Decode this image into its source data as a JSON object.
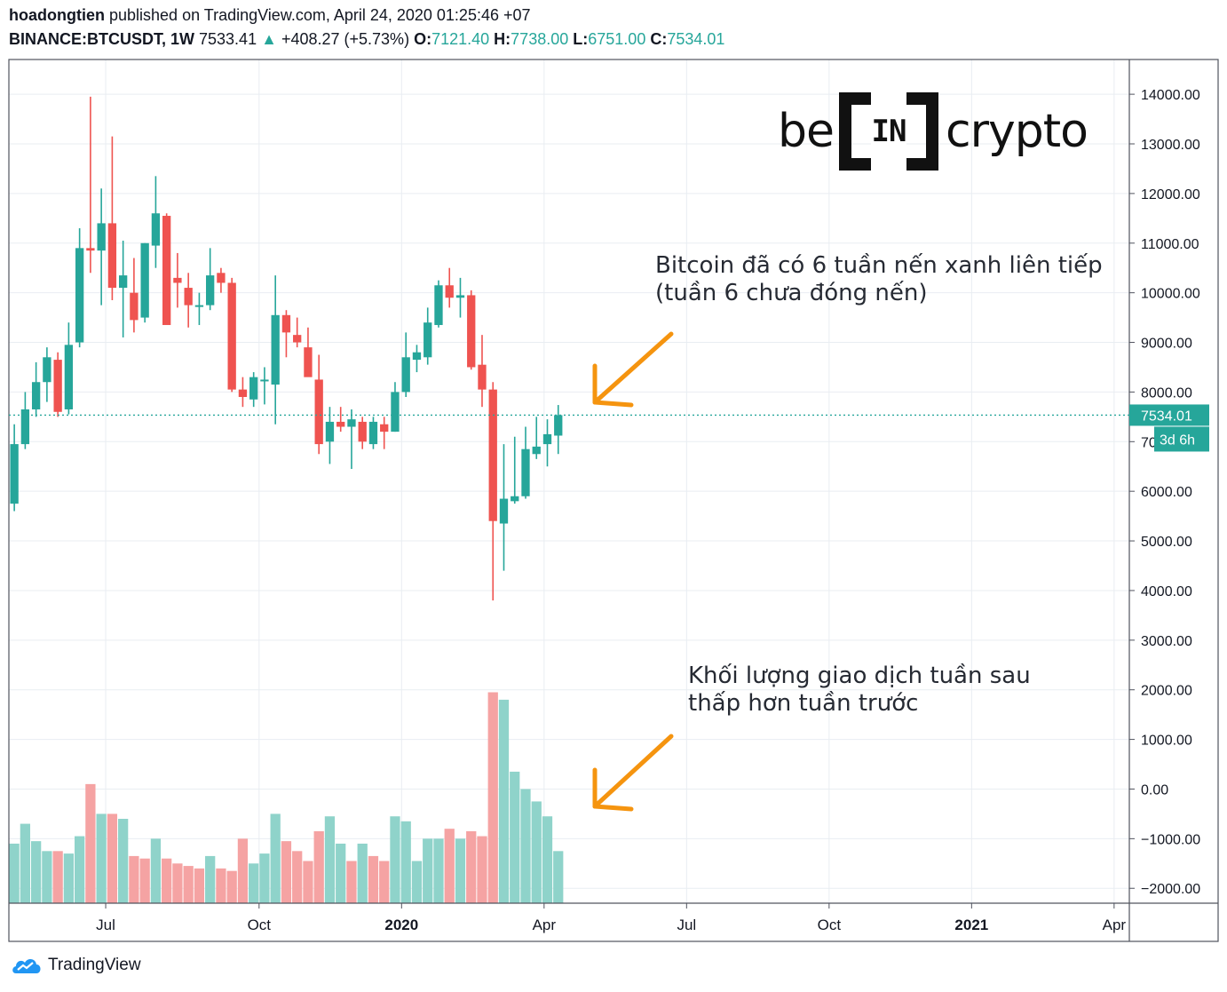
{
  "header": {
    "author": "hoadongtien",
    "published": "published on TradingView.com, April 24, 2020 01:25:46 +07",
    "symbol": "BINANCE:BTCUSDT, 1W",
    "last": "7533.41",
    "change_arrow": "▲",
    "change": "+408.27 (+5.73%)",
    "o_label": "O:",
    "o": "7121.40",
    "h_label": "H:",
    "h": "7738.00",
    "l_label": "L:",
    "l": "6751.00",
    "c_label": "C:",
    "c": "7534.01"
  },
  "logo": {
    "left": "be",
    "middle": "IN",
    "right": "crypto"
  },
  "annotations": {
    "candles_line1": "Bitcoin đã có 6 tuần nến xanh liên tiếp",
    "candles_line2": "(tuần 6 chưa đóng nến)",
    "volume_line1": "Khối lượng giao dịch tuần sau",
    "volume_line2": "thấp hơn tuần trước"
  },
  "price_label": {
    "value": "7534.01",
    "countdown": "3d 6h"
  },
  "footer": {
    "brand": "TradingView"
  },
  "colors": {
    "up": "#26a69a",
    "down": "#ef5350",
    "vol_up": "#8fd3ca",
    "vol_down": "#f5a3a3",
    "arrow": "#f5940f",
    "grid": "#e9edf2"
  },
  "chart_data": {
    "type": "candlestick",
    "ylim": [
      -2300,
      14700
    ],
    "y_ticks": [
      "14000.00",
      "13000.00",
      "12000.00",
      "11000.00",
      "10000.00",
      "9000.00",
      "8000.00",
      "7000.00",
      "6000.00",
      "5000.00",
      "4000.00",
      "3000.00",
      "2000.00",
      "1000.00",
      "0.00",
      "−1000.00",
      "−2000.00"
    ],
    "y_tick_values": [
      14000,
      13000,
      12000,
      11000,
      10000,
      9000,
      8000,
      7000,
      6000,
      5000,
      4000,
      3000,
      2000,
      1000,
      0,
      -1000,
      -2000
    ],
    "x_ticks": [
      {
        "label": "Jul",
        "index": 8.4,
        "bold": false
      },
      {
        "label": "Oct",
        "index": 22.5,
        "bold": false
      },
      {
        "label": "2020",
        "index": 35.6,
        "bold": true
      },
      {
        "label": "Apr",
        "index": 48.7,
        "bold": false
      },
      {
        "label": "Jul",
        "index": 61.8,
        "bold": false
      },
      {
        "label": "Oct",
        "index": 74.9,
        "bold": false
      },
      {
        "label": "2021",
        "index": 88.0,
        "bold": true
      },
      {
        "label": "Apr",
        "index": 101.1,
        "bold": false
      }
    ],
    "x_range": [
      -0.5,
      102.5
    ],
    "last_price": 7534.01,
    "candles": [
      {
        "o": 5750,
        "h": 7350,
        "l": 5600,
        "c": 6950
      },
      {
        "o": 6950,
        "h": 8000,
        "l": 6850,
        "c": 7650
      },
      {
        "o": 7650,
        "h": 8600,
        "l": 7500,
        "c": 8200
      },
      {
        "o": 8200,
        "h": 8900,
        "l": 7800,
        "c": 8700
      },
      {
        "o": 8650,
        "h": 8800,
        "l": 7500,
        "c": 7600
      },
      {
        "o": 7650,
        "h": 9400,
        "l": 7550,
        "c": 8950
      },
      {
        "o": 9000,
        "h": 11300,
        "l": 8900,
        "c": 10900
      },
      {
        "o": 10900,
        "h": 13950,
        "l": 10400,
        "c": 10850
      },
      {
        "o": 10850,
        "h": 12100,
        "l": 9750,
        "c": 11400
      },
      {
        "o": 11400,
        "h": 13150,
        "l": 9850,
        "c": 10100
      },
      {
        "o": 10100,
        "h": 11050,
        "l": 9100,
        "c": 10350
      },
      {
        "o": 10000,
        "h": 10700,
        "l": 9200,
        "c": 9450
      },
      {
        "o": 9500,
        "h": 11000,
        "l": 9400,
        "c": 11000
      },
      {
        "o": 10950,
        "h": 12350,
        "l": 10500,
        "c": 11600
      },
      {
        "o": 11550,
        "h": 11600,
        "l": 9400,
        "c": 9350
      },
      {
        "o": 10300,
        "h": 10800,
        "l": 9700,
        "c": 10200
      },
      {
        "o": 10100,
        "h": 10400,
        "l": 9300,
        "c": 9750
      },
      {
        "o": 9750,
        "h": 10000,
        "l": 9350,
        "c": 9750
      },
      {
        "o": 9750,
        "h": 10900,
        "l": 9650,
        "c": 10350
      },
      {
        "o": 10400,
        "h": 10500,
        "l": 10000,
        "c": 10200
      },
      {
        "o": 10200,
        "h": 10300,
        "l": 8000,
        "c": 8050
      },
      {
        "o": 8050,
        "h": 8300,
        "l": 7700,
        "c": 7900
      },
      {
        "o": 7850,
        "h": 8400,
        "l": 7700,
        "c": 8300
      },
      {
        "o": 8250,
        "h": 8500,
        "l": 7750,
        "c": 8250
      },
      {
        "o": 8150,
        "h": 10350,
        "l": 7350,
        "c": 9550
      },
      {
        "o": 9550,
        "h": 9650,
        "l": 8700,
        "c": 9200
      },
      {
        "o": 9150,
        "h": 9500,
        "l": 8900,
        "c": 9000
      },
      {
        "o": 8900,
        "h": 9300,
        "l": 8400,
        "c": 8300
      },
      {
        "o": 8250,
        "h": 8750,
        "l": 6750,
        "c": 6950
      },
      {
        "o": 7000,
        "h": 7700,
        "l": 6550,
        "c": 7400
      },
      {
        "o": 7400,
        "h": 7700,
        "l": 7200,
        "c": 7300
      },
      {
        "o": 7300,
        "h": 7650,
        "l": 6450,
        "c": 7450
      },
      {
        "o": 7400,
        "h": 7500,
        "l": 6850,
        "c": 7000
      },
      {
        "o": 6950,
        "h": 7500,
        "l": 6850,
        "c": 7400
      },
      {
        "o": 7350,
        "h": 7500,
        "l": 6850,
        "c": 7200
      },
      {
        "o": 7200,
        "h": 8200,
        "l": 7200,
        "c": 8000
      },
      {
        "o": 8000,
        "h": 9200,
        "l": 7900,
        "c": 8700
      },
      {
        "o": 8650,
        "h": 8950,
        "l": 8400,
        "c": 8800
      },
      {
        "o": 8700,
        "h": 9700,
        "l": 8550,
        "c": 9400
      },
      {
        "o": 9350,
        "h": 10250,
        "l": 9300,
        "c": 10150
      },
      {
        "o": 10150,
        "h": 10500,
        "l": 9700,
        "c": 9900
      },
      {
        "o": 9900,
        "h": 10300,
        "l": 9500,
        "c": 9950
      },
      {
        "o": 9950,
        "h": 10050,
        "l": 8450,
        "c": 8500
      },
      {
        "o": 8550,
        "h": 9150,
        "l": 7700,
        "c": 8050
      },
      {
        "o": 8050,
        "h": 8200,
        "l": 3800,
        "c": 5400
      },
      {
        "o": 5350,
        "h": 6950,
        "l": 4400,
        "c": 5850
      },
      {
        "o": 5800,
        "h": 7100,
        "l": 5750,
        "c": 5900
      },
      {
        "o": 5900,
        "h": 7300,
        "l": 5850,
        "c": 6850
      },
      {
        "o": 6750,
        "h": 7500,
        "l": 6650,
        "c": 6900
      },
      {
        "o": 6950,
        "h": 7450,
        "l": 6500,
        "c": 7150
      },
      {
        "o": 7121.4,
        "h": 7738,
        "l": 6751,
        "c": 7534.01
      }
    ],
    "volume": [
      {
        "v": -1100,
        "up": true
      },
      {
        "v": -700,
        "up": true
      },
      {
        "v": -1050,
        "up": true
      },
      {
        "v": -1250,
        "up": true
      },
      {
        "v": -1250,
        "up": false
      },
      {
        "v": -1300,
        "up": true
      },
      {
        "v": -950,
        "up": true
      },
      {
        "v": 100,
        "up": false
      },
      {
        "v": -500,
        "up": true
      },
      {
        "v": -500,
        "up": false
      },
      {
        "v": -600,
        "up": true
      },
      {
        "v": -1350,
        "up": false
      },
      {
        "v": -1400,
        "up": false
      },
      {
        "v": -1000,
        "up": true
      },
      {
        "v": -1400,
        "up": false
      },
      {
        "v": -1500,
        "up": false
      },
      {
        "v": -1550,
        "up": false
      },
      {
        "v": -1600,
        "up": false
      },
      {
        "v": -1350,
        "up": true
      },
      {
        "v": -1600,
        "up": false
      },
      {
        "v": -1650,
        "up": false
      },
      {
        "v": -1000,
        "up": false
      },
      {
        "v": -1500,
        "up": true
      },
      {
        "v": -1300,
        "up": true
      },
      {
        "v": -500,
        "up": true
      },
      {
        "v": -1050,
        "up": false
      },
      {
        "v": -1250,
        "up": false
      },
      {
        "v": -1450,
        "up": false
      },
      {
        "v": -850,
        "up": false
      },
      {
        "v": -550,
        "up": true
      },
      {
        "v": -1100,
        "up": true
      },
      {
        "v": -1450,
        "up": false
      },
      {
        "v": -1100,
        "up": true
      },
      {
        "v": -1350,
        "up": false
      },
      {
        "v": -1450,
        "up": false
      },
      {
        "v": -550,
        "up": true
      },
      {
        "v": -650,
        "up": true
      },
      {
        "v": -1450,
        "up": true
      },
      {
        "v": -1000,
        "up": true
      },
      {
        "v": -1000,
        "up": true
      },
      {
        "v": -800,
        "up": false
      },
      {
        "v": -1000,
        "up": true
      },
      {
        "v": -850,
        "up": false
      },
      {
        "v": -950,
        "up": false
      },
      {
        "v": 1950,
        "up": false
      },
      {
        "v": 1800,
        "up": true
      },
      {
        "v": 350,
        "up": true
      },
      {
        "v": 0,
        "up": true
      },
      {
        "v": -250,
        "up": true
      },
      {
        "v": -550,
        "up": true
      },
      {
        "v": -1250,
        "up": true
      }
    ]
  }
}
